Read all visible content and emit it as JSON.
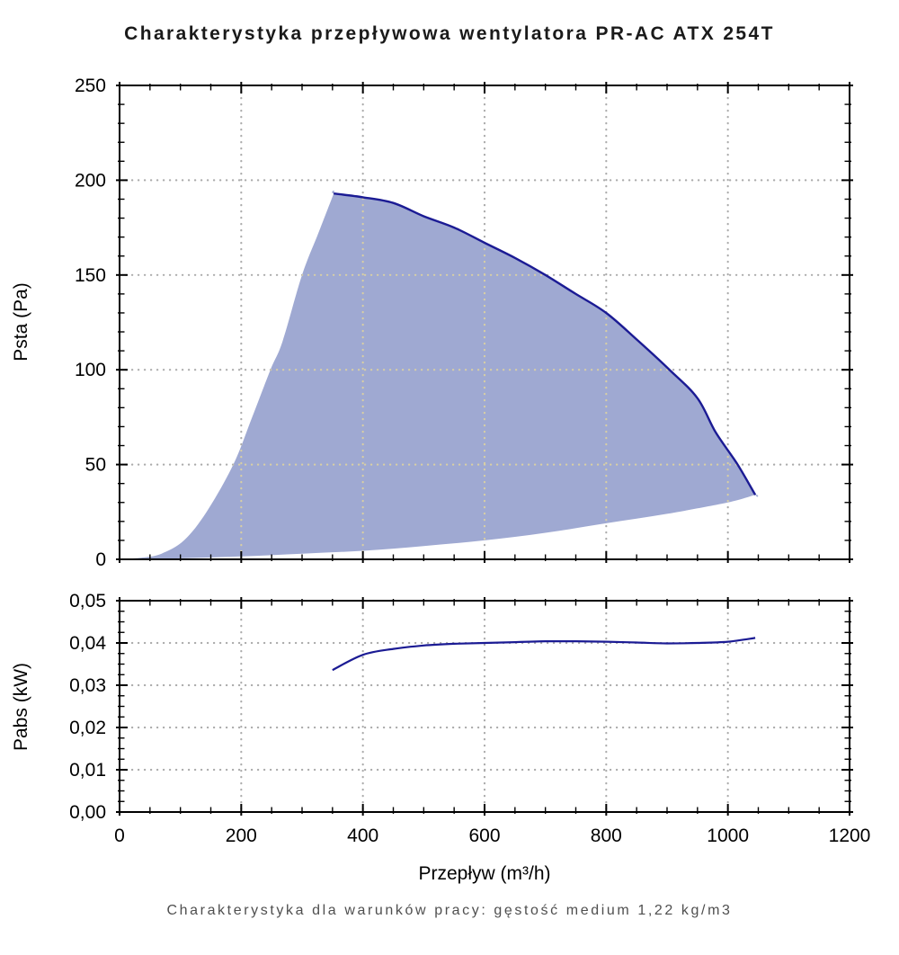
{
  "title": "Charakterystyka przepływowa wentylatora PR-AC ATX 254T",
  "caption": "Charakterystyka dla warunków pracy: gęstość medium 1,22 kg/m3",
  "colors": {
    "curve": "#1b1b94",
    "area_fill": "#9fa9d2",
    "grid_dot": "#ababab",
    "grid_dot_on_area": "#d8cfa4",
    "axis": "#000000",
    "title_text": "#1a1a1a",
    "caption_text": "#4f4f4f"
  },
  "chart_data": [
    {
      "type": "area",
      "name": "pressure-vs-flow",
      "title": "",
      "xlabel": "",
      "ylabel": "Psta (Pa)",
      "xlim": [
        0,
        1200
      ],
      "ylim": [
        0,
        250
      ],
      "x_tick_step": 200,
      "x_minor_step": 50,
      "y_tick_step": 50,
      "y_minor_step": 10,
      "x_tick_labels": [
        "0",
        "200",
        "400",
        "600",
        "800",
        "1000",
        "1200"
      ],
      "y_tick_labels": [
        "0",
        "50",
        "100",
        "150",
        "200",
        "250"
      ],
      "grid": "dotted",
      "legend": "none",
      "series": [
        {
          "name": "max-speed-curve-upper-boundary",
          "points": [
            [
              352,
              193
            ],
            [
              400,
              191
            ],
            [
              450,
              188
            ],
            [
              500,
              181
            ],
            [
              550,
              175
            ],
            [
              600,
              167
            ],
            [
              650,
              159
            ],
            [
              700,
              150
            ],
            [
              750,
              140
            ],
            [
              800,
              130
            ],
            [
              850,
              116
            ],
            [
              904,
              100
            ],
            [
              950,
              85
            ],
            [
              980,
              67
            ],
            [
              1016,
              50
            ],
            [
              1045,
              34
            ]
          ]
        },
        {
          "name": "surge-line-left-boundary",
          "points": [
            [
              0,
              0
            ],
            [
              40,
              1
            ],
            [
              69,
              3
            ],
            [
              106,
              10
            ],
            [
              143,
              25
            ],
            [
              187,
              50
            ],
            [
              218,
              75
            ],
            [
              248,
              100
            ],
            [
              268,
              115
            ],
            [
              300,
              150
            ],
            [
              328,
              173
            ],
            [
              352,
              193
            ]
          ]
        },
        {
          "name": "min-speed-curve-lower-boundary",
          "points": [
            [
              0,
              0
            ],
            [
              100,
              0.5
            ],
            [
              200,
              1.5
            ],
            [
              300,
              3
            ],
            [
              400,
              4.5
            ],
            [
              500,
              7
            ],
            [
              600,
              10
            ],
            [
              700,
              14
            ],
            [
              800,
              19
            ],
            [
              900,
              24
            ],
            [
              1000,
              30
            ],
            [
              1045,
              34
            ]
          ]
        }
      ]
    },
    {
      "type": "line",
      "name": "power-vs-flow",
      "title": "",
      "xlabel": "Przepływ (m³/h)",
      "ylabel": "Pabs (kW)",
      "xlim": [
        0,
        1200
      ],
      "ylim": [
        0,
        0.05
      ],
      "x_tick_step": 200,
      "x_minor_step": 50,
      "y_tick_step": 0.01,
      "y_minor_step": 0.0025,
      "x_tick_labels": [
        "0",
        "200",
        "400",
        "600",
        "800",
        "1000",
        "1200"
      ],
      "y_tick_labels": [
        "0,00",
        "0,01",
        "0,02",
        "0,03",
        "0,04",
        "0,05"
      ],
      "grid": "dotted",
      "legend": "none",
      "series": [
        {
          "name": "absorbed-power-curve",
          "points": [
            [
              350,
              0.0336
            ],
            [
              400,
              0.0372
            ],
            [
              450,
              0.0386
            ],
            [
              500,
              0.0394
            ],
            [
              550,
              0.0398
            ],
            [
              600,
              0.04
            ],
            [
              650,
              0.0402
            ],
            [
              700,
              0.0404
            ],
            [
              750,
              0.0404
            ],
            [
              800,
              0.0403
            ],
            [
              850,
              0.0401
            ],
            [
              900,
              0.0399
            ],
            [
              950,
              0.04
            ],
            [
              1000,
              0.0403
            ],
            [
              1045,
              0.0412
            ]
          ]
        }
      ]
    }
  ]
}
